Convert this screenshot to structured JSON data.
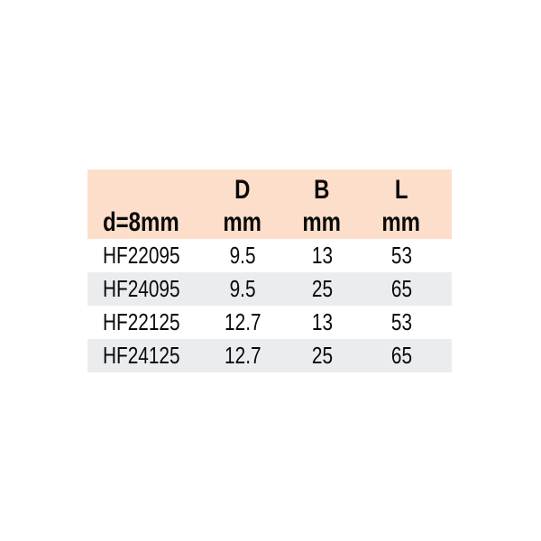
{
  "table": {
    "header": {
      "col_label": "",
      "col_d": "D",
      "col_b": "B",
      "col_l": "L",
      "sub_label": "d=8mm",
      "sub_d": "mm",
      "sub_b": "mm",
      "sub_l": "mm"
    },
    "rows": [
      {
        "model": "HF22095",
        "d": "9.5",
        "b": "13",
        "l": "53"
      },
      {
        "model": "HF24095",
        "d": "9.5",
        "b": "25",
        "l": "65"
      },
      {
        "model": "HF22125",
        "d": "12.7",
        "b": "13",
        "l": "53"
      },
      {
        "model": "HF24125",
        "d": "12.7",
        "b": "25",
        "l": "65"
      }
    ],
    "colors": {
      "header_bg": "#fcdeca",
      "stripe_bg": "#ebecee",
      "text": "#0a0a0a",
      "page_bg": "#ffffff"
    }
  }
}
